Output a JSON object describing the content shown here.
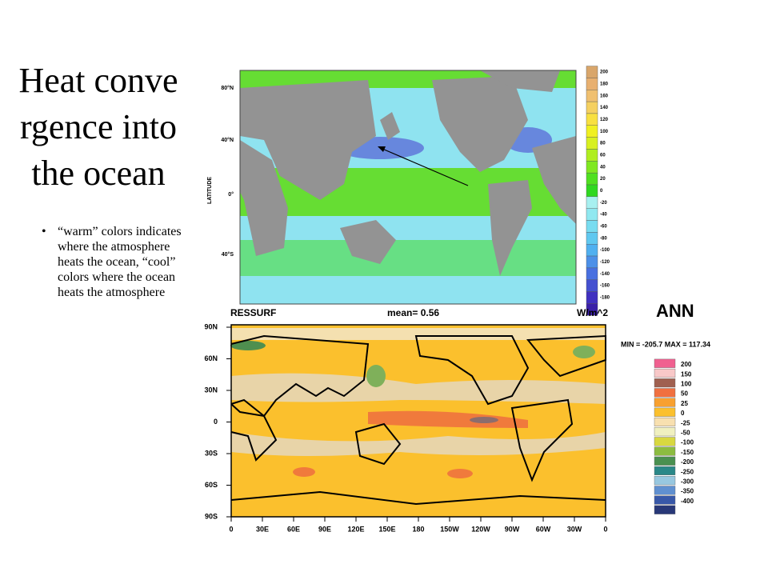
{
  "slide": {
    "title": "Heat convergence into the ocean",
    "bullet": "“warm” colors indicates where the atmosphere heats the ocean, “cool” colors where the ocean heats the atmosphere",
    "top_map": {
      "axis_title": "LATITUDE",
      "lat_labels": [
        "80°N",
        "40°N",
        "0°",
        "40°S"
      ],
      "colorbar_labels": [
        "200",
        "180",
        "160",
        "140",
        "120",
        "100",
        "80",
        "60",
        "40",
        "20",
        "0",
        "-20",
        "-40",
        "-60",
        "-80",
        "-100",
        "-120",
        "-140",
        "-160",
        "-180"
      ]
    },
    "bottom_map": {
      "variable": "RESSURF",
      "mean": "mean= 0.56",
      "units": "W/m^2",
      "season": "ANN",
      "minmax": "MIN = -205.7 MAX = 117.34",
      "lat_labels": [
        "90N",
        "60N",
        "30N",
        "0",
        "30S",
        "60S",
        "90S"
      ],
      "lon_labels": [
        "0",
        "30E",
        "60E",
        "90E",
        "120E",
        "150E",
        "180",
        "150W",
        "120W",
        "90W",
        "60W",
        "30W",
        "0"
      ],
      "legend_labels": [
        "200",
        "150",
        "100",
        "50",
        "25",
        "0",
        "-25",
        "-50",
        "-100",
        "-150",
        "-200",
        "-250",
        "-300",
        "-350",
        "-400"
      ]
    }
  }
}
